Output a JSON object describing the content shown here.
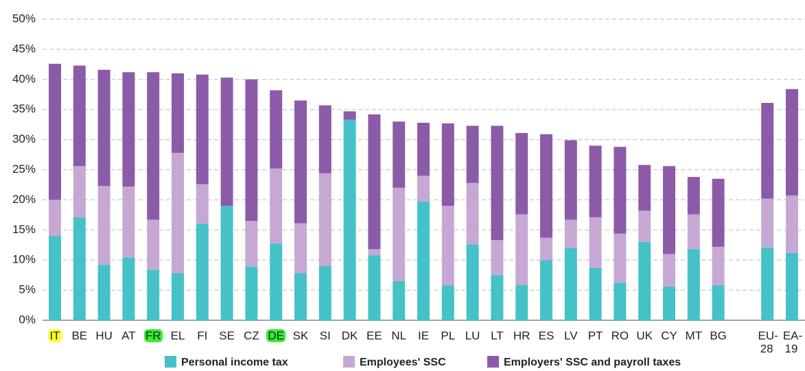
{
  "chart_data": {
    "type": "stacked_bar",
    "categories": [
      "IT",
      "BE",
      "HU",
      "AT",
      "FR",
      "EL",
      "FI",
      "SE",
      "CZ",
      "DE",
      "SK",
      "SI",
      "DK",
      "EE",
      "NL",
      "IE",
      "PL",
      "LU",
      "LT",
      "HR",
      "ES",
      "LV",
      "PT",
      "RO",
      "UK",
      "CY",
      "MT",
      "BG",
      null,
      "EU-28",
      "EA-19"
    ],
    "highlight": [
      "#ffff33",
      null,
      null,
      null,
      "#33ee33",
      null,
      null,
      null,
      null,
      "#33ee33",
      null,
      null,
      null,
      null,
      null,
      null,
      null,
      null,
      null,
      null,
      null,
      null,
      null,
      null,
      null,
      null,
      null,
      null,
      null,
      null,
      null
    ],
    "series": [
      {
        "name": "Personal income tax",
        "color": "#45c1c8",
        "values": [
          14,
          17.1,
          9.2,
          10.4,
          8.4,
          7.8,
          16,
          19,
          8.9,
          12.7,
          7.8,
          9,
          33.3,
          10.8,
          6.5,
          19.7,
          5.8,
          12.6,
          7.5,
          5.9,
          10,
          12,
          8.7,
          6.2,
          13,
          5.6,
          11.8,
          5.8,
          null,
          12.1,
          11.2
        ]
      },
      {
        "name": "Employees' SSC",
        "color": "#c6a9d3",
        "values": [
          6,
          8.5,
          13.1,
          11.8,
          8.3,
          20,
          6.6,
          0,
          7.6,
          12.5,
          8.3,
          15.4,
          0,
          1,
          15.5,
          4.3,
          13.2,
          10.2,
          5.8,
          11.7,
          3.7,
          4.7,
          8.4,
          8.2,
          5.2,
          5.4,
          5.8,
          6.4,
          null,
          8.1,
          9.5
        ]
      },
      {
        "name": "Employers' SSC and payroll taxes",
        "color": "#8c5ba8",
        "values": [
          22.6,
          16.7,
          19.3,
          19,
          24.5,
          13.2,
          18.2,
          21.3,
          23.5,
          13,
          20.4,
          11.3,
          1.4,
          22.4,
          11,
          8.8,
          13.7,
          9.5,
          19,
          13.5,
          17.2,
          13.2,
          11.9,
          14.4,
          7.6,
          14.6,
          6.2,
          11.3,
          null,
          15.9,
          17.7
        ]
      }
    ],
    "ylim": [
      0,
      50
    ],
    "yticks": [
      {
        "value": 0,
        "label": "0%"
      },
      {
        "value": 5,
        "label": "5%"
      },
      {
        "value": 10,
        "label": "10%"
      },
      {
        "value": 15,
        "label": "15%"
      },
      {
        "value": 20,
        "label": "20%"
      },
      {
        "value": 25,
        "label": "25%"
      },
      {
        "value": 30,
        "label": "30%"
      },
      {
        "value": 35,
        "label": "35%"
      },
      {
        "value": 40,
        "label": "40%"
      },
      {
        "value": 45,
        "label": "45%"
      },
      {
        "value": 50,
        "label": "50%"
      }
    ],
    "grid": true
  }
}
